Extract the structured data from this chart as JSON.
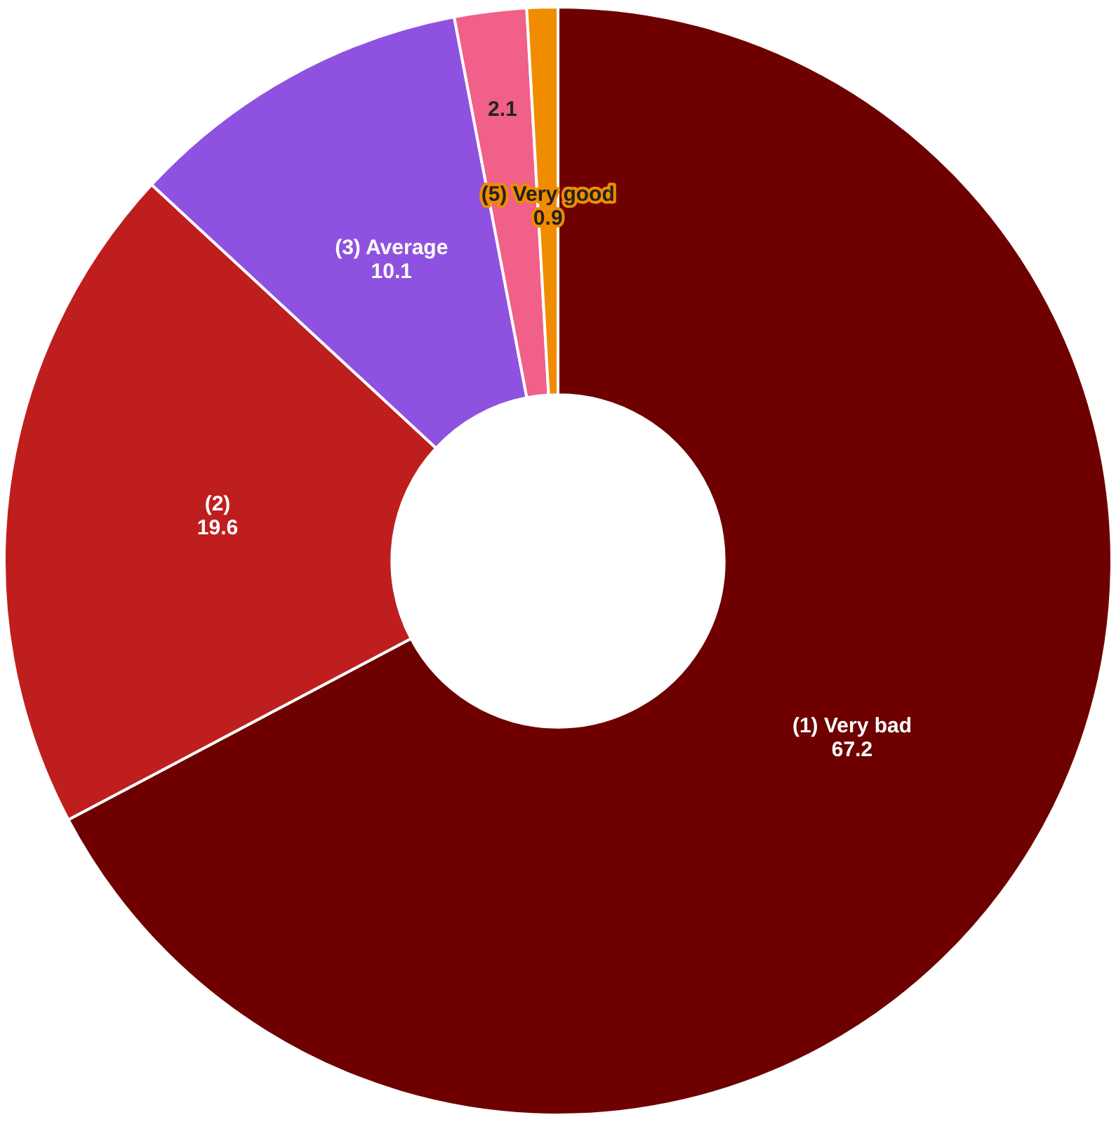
{
  "chart_data": {
    "type": "donut",
    "categories": [
      "(1) Very bad",
      "(2)",
      "(3) Average",
      null,
      "(5) Very good"
    ],
    "values": [
      67.2,
      19.6,
      10.1,
      2.1,
      0.9
    ],
    "colors": [
      "#6e0000",
      "#be1e1e",
      "#8f52e0",
      "#f06088",
      "#f08c00"
    ],
    "data_labels": true,
    "legend": false
  }
}
